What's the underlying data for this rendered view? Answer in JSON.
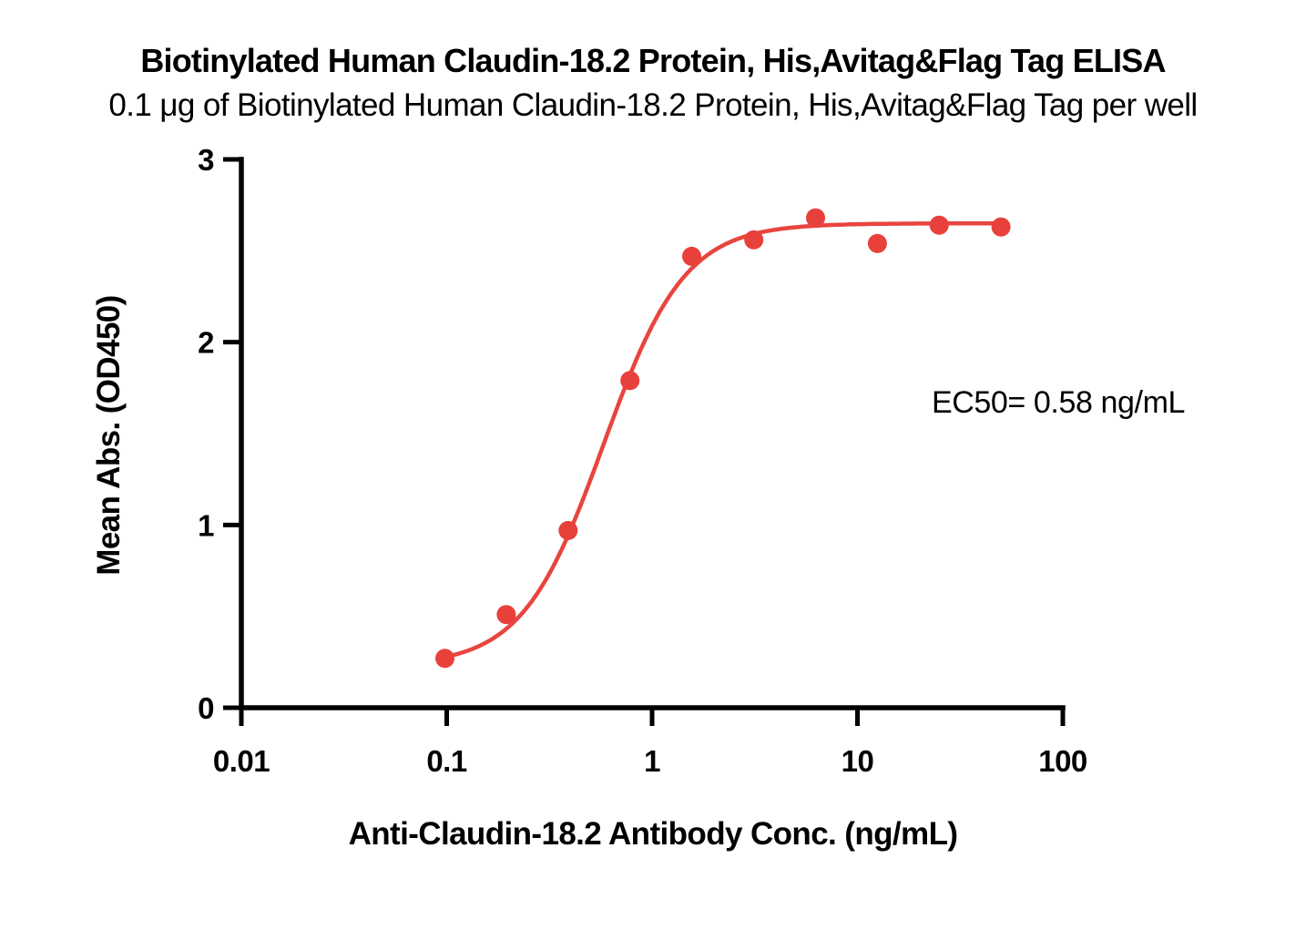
{
  "header": {
    "title": "Biotinylated Human Claudin-18.2 Protein, His,Avitag&Flag Tag ELISA",
    "subtitle": "0.1 μg of Biotinylated Human Claudin-18.2 Protein, His,Avitag&Flag Tag per well"
  },
  "colors": {
    "series_red": "#E8413B",
    "curve_red": "#E8453F",
    "axis_black": "#000000",
    "background": "#ffffff"
  },
  "chart_data": {
    "type": "scatter",
    "title": "Biotinylated Human Claudin-18.2 Protein, His,Avitag&Flag Tag ELISA",
    "subtitle": "0.1 μg of Biotinylated Human Claudin-18.2 Protein, His,Avitag&Flag Tag per well",
    "xlabel": "Anti-Claudin-18.2 Antibody Conc. (ng/mL)",
    "ylabel": "Mean Abs. (OD450)",
    "x_scale": "log10",
    "xlim": [
      0.01,
      100
    ],
    "ylim": [
      0,
      3
    ],
    "x_ticks": [
      0.01,
      0.1,
      1,
      10,
      100
    ],
    "x_tick_labels": [
      "0.01",
      "0.1",
      "1",
      "10",
      "100"
    ],
    "y_ticks": [
      0,
      1,
      2,
      3
    ],
    "y_tick_labels": [
      "0",
      "1",
      "2",
      "3"
    ],
    "grid": false,
    "legend": "none",
    "ec50_annotation": "EC50= 0.58 ng/mL",
    "series": [
      {
        "name": "Biotinylated Human Claudin-18.2 Protein",
        "marker": "circle",
        "points": [
          {
            "x": 0.098,
            "y": 0.27
          },
          {
            "x": 0.195,
            "y": 0.51
          },
          {
            "x": 0.39,
            "y": 0.97
          },
          {
            "x": 0.78,
            "y": 1.79
          },
          {
            "x": 1.56,
            "y": 2.47
          },
          {
            "x": 3.13,
            "y": 2.56
          },
          {
            "x": 6.25,
            "y": 2.68
          },
          {
            "x": 12.5,
            "y": 2.54
          },
          {
            "x": 25,
            "y": 2.64
          },
          {
            "x": 50,
            "y": 2.63
          }
        ],
        "fit": {
          "model": "4PL",
          "bottom": 0.23,
          "top": 2.65,
          "ec50": 0.58,
          "hill": 2.2
        }
      }
    ]
  }
}
